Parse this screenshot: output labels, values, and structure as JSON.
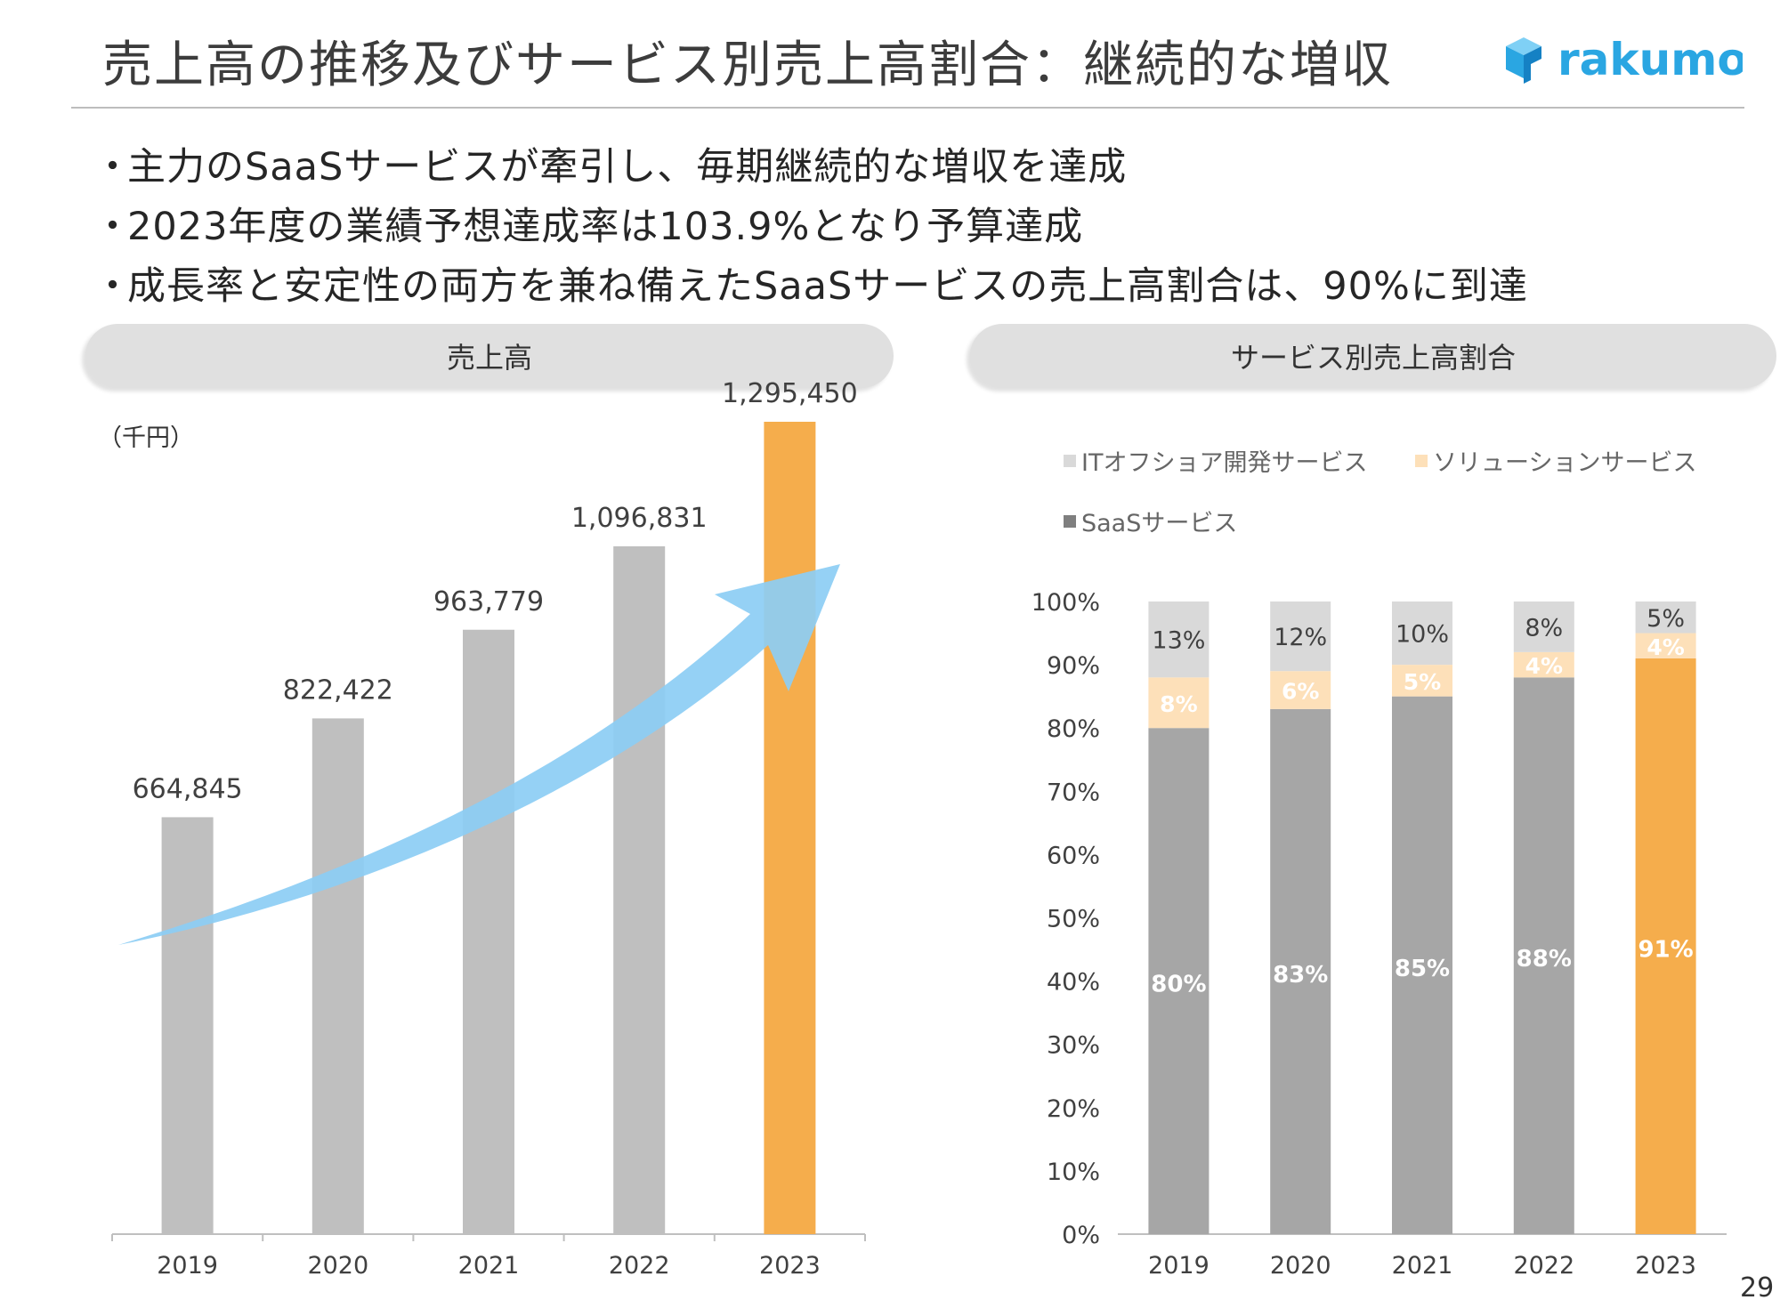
{
  "slide": {
    "title": "売上高の推移及びサービス別売上高割合：継続的な増収",
    "logo_text": "rakumo",
    "page_number": "29",
    "bullets": [
      "主力のSaaSサービスが牽引し、毎期継続的な増収を達成",
      "2023年度の業績予想達成率は103.9%となり予算達成",
      "成長率と安定性の両方を兼ね備えたSaaSサービスの売上高割合は、90%に到達"
    ],
    "bullet_marker": "・",
    "left_panel_title": "売上高",
    "right_panel_title": "サービス別売上高割合",
    "unit_label": "（千円）"
  },
  "colors": {
    "bar_gray": "#bfbfbf",
    "bar_highlight": "#f5ad4c",
    "saas_gray": "#a6a6a6",
    "solution_peach": "#fde0b9",
    "it_lightgray": "#d9d9d9",
    "arrow_blue": "#8ccdf4",
    "logo_blue": "#2aa6e2"
  },
  "chart_data": [
    {
      "type": "bar",
      "title": "売上高",
      "categories": [
        "2019",
        "2020",
        "2021",
        "2022",
        "2023"
      ],
      "values": [
        664845,
        822422,
        963779,
        1096831,
        1295450
      ],
      "value_labels": [
        "664,845",
        "822,422",
        "963,779",
        "1,096,831",
        "1,295,450"
      ],
      "highlight_index": 4,
      "ylim": [
        0,
        1500000
      ],
      "ylabel": "",
      "xlabel": "",
      "unit": "千円",
      "annotation": "upward arrow indicating growth"
    },
    {
      "type": "bar",
      "stacked": true,
      "title": "サービス別売上高割合",
      "categories": [
        "2019",
        "2020",
        "2021",
        "2022",
        "2023"
      ],
      "series": [
        {
          "name": "SaaSサービス",
          "values": [
            80,
            83,
            85,
            88,
            91
          ],
          "labels": [
            "80%",
            "83%",
            "85%",
            "88%",
            "91%"
          ]
        },
        {
          "name": "ソリューションサービス",
          "values": [
            8,
            6,
            5,
            4,
            4
          ],
          "labels": [
            "8%",
            "6%",
            "5%",
            "4%",
            "4%"
          ]
        },
        {
          "name": "ITオフショア開発サービス",
          "values": [
            13,
            12,
            10,
            8,
            5
          ],
          "labels": [
            "13%",
            "12%",
            "10%",
            "8%",
            "5%"
          ]
        }
      ],
      "legend_order": [
        "ITオフショア開発サービス",
        "ソリューションサービス",
        "SaaSサービス"
      ],
      "legend_position": "top",
      "yticks": [
        "0%",
        "10%",
        "20%",
        "30%",
        "40%",
        "50%",
        "60%",
        "70%",
        "80%",
        "90%",
        "100%"
      ],
      "ylim": [
        0,
        100
      ],
      "highlight_index": 4
    }
  ]
}
